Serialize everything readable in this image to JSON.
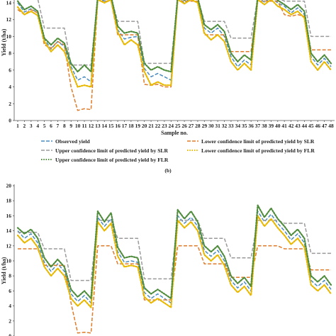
{
  "chart_data": [
    {
      "type": "line",
      "ylabel": "Yield (t/ha)",
      "xlabel": "Sample no.",
      "ylim": [
        0,
        14
      ],
      "yticks": [
        0,
        2,
        4,
        6,
        8,
        10,
        12,
        14
      ],
      "grid": false,
      "x": [
        1,
        2,
        3,
        4,
        5,
        6,
        7,
        8,
        9,
        10,
        11,
        12,
        13,
        14,
        15,
        16,
        17,
        18,
        19,
        20,
        21,
        22,
        23,
        24,
        25,
        26,
        27,
        28,
        29,
        30,
        31,
        32,
        33,
        34,
        35,
        36,
        37,
        38,
        39,
        40,
        41,
        42,
        43,
        44,
        45,
        46,
        47,
        48
      ],
      "series": [
        {
          "name": "Observed yield",
          "color": "#4a8bbf",
          "dash": "long",
          "values": [
            14.0,
            12.9,
            13.3,
            12.8,
            9.7,
            8.5,
            9.4,
            8.8,
            6.4,
            4.8,
            5.2,
            4.6,
            14.6,
            14.2,
            14.6,
            10.8,
            9.7,
            9.9,
            10.0,
            6.2,
            5.2,
            5.6,
            5.2,
            4.8,
            14.6,
            14.0,
            14.6,
            14.4,
            11.0,
            10.4,
            11.0,
            10.0,
            7.6,
            6.4,
            7.2,
            6.6,
            14.6,
            14.1,
            14.6,
            14.0,
            13.6,
            12.8,
            13.4,
            12.6,
            7.6,
            6.6,
            7.4,
            6.4
          ]
        },
        {
          "name": "Lower confidence limit of predicted yield by SLR",
          "color": "#e07b29",
          "dash": "long",
          "values": [
            13.2,
            12.6,
            13.2,
            12.8,
            9.0,
            8.6,
            9.4,
            9.0,
            4.0,
            1.2,
            1.4,
            1.3,
            14.2,
            14.2,
            14.2,
            10.2,
            10.2,
            10.2,
            10.2,
            4.3,
            4.2,
            4.3,
            4.0,
            4.0,
            14.2,
            14.2,
            14.2,
            14.2,
            10.2,
            10.2,
            10.2,
            10.2,
            8.2,
            8.2,
            8.2,
            8.2,
            14.2,
            14.2,
            14.2,
            14.2,
            12.6,
            12.4,
            12.6,
            12.4,
            8.4,
            8.4,
            8.4,
            8.4
          ]
        },
        {
          "name": "Upper confidence limit of predicted yield by SLR",
          "color": "#9a9a9a",
          "dash": "long",
          "values": [
            14.5,
            14.5,
            14.5,
            14.5,
            11.0,
            11.0,
            11.0,
            11.0,
            6.6,
            6.6,
            6.6,
            6.6,
            14.6,
            14.6,
            14.6,
            11.8,
            11.8,
            11.8,
            11.8,
            6.8,
            6.8,
            6.8,
            6.8,
            6.8,
            14.6,
            14.6,
            14.6,
            14.6,
            11.8,
            11.8,
            11.8,
            11.8,
            9.8,
            9.8,
            9.8,
            9.8,
            14.6,
            14.6,
            14.6,
            14.6,
            14.2,
            14.2,
            14.2,
            14.2,
            10.0,
            10.0,
            10.0,
            10.0
          ]
        },
        {
          "name": "Lower confidence limit of predicted yield by FLR",
          "color": "#e8b800",
          "dash": "dot",
          "values": [
            13.5,
            12.6,
            13.0,
            12.5,
            9.4,
            8.2,
            9.0,
            8.2,
            6.0,
            4.0,
            4.2,
            4.0,
            14.4,
            14.0,
            14.4,
            10.5,
            9.0,
            9.6,
            9.0,
            5.8,
            4.2,
            4.6,
            4.2,
            4.2,
            14.4,
            13.9,
            14.4,
            14.0,
            10.4,
            9.6,
            10.2,
            9.4,
            7.0,
            6.0,
            6.8,
            6.0,
            14.4,
            13.8,
            14.4,
            13.6,
            13.2,
            12.6,
            13.0,
            12.2,
            7.0,
            6.0,
            7.0,
            6.0
          ]
        },
        {
          "name": "Upper confidence limit of predicted yield by FLR",
          "color": "#4e8c3c",
          "dash": "dot",
          "values": [
            14.2,
            13.2,
            13.6,
            13.0,
            9.8,
            9.0,
            9.8,
            9.2,
            6.8,
            5.8,
            6.6,
            5.8,
            14.8,
            14.4,
            14.8,
            11.2,
            10.4,
            10.6,
            10.4,
            6.8,
            6.0,
            6.4,
            6.0,
            5.8,
            14.8,
            14.3,
            14.8,
            14.6,
            11.4,
            10.8,
            11.4,
            10.6,
            8.0,
            7.0,
            7.8,
            7.2,
            14.8,
            14.4,
            14.8,
            14.3,
            13.8,
            13.2,
            13.8,
            13.0,
            8.0,
            7.0,
            7.8,
            6.8
          ]
        }
      ]
    },
    {
      "type": "line",
      "panel_label": "(b)",
      "ylabel": "Yield (t/ha)",
      "ylim": [
        0,
        20
      ],
      "yticks": [
        0,
        2,
        4,
        6,
        8,
        10,
        12,
        14,
        16,
        18,
        20
      ],
      "grid": false,
      "x": [
        1,
        2,
        3,
        4,
        5,
        6,
        7,
        8,
        9,
        10,
        11,
        12,
        13,
        14,
        15,
        16,
        17,
        18,
        19,
        20,
        21,
        22,
        23,
        24,
        25,
        26,
        27,
        28,
        29,
        30,
        31,
        32,
        33,
        34,
        35,
        36,
        37,
        38,
        39,
        40,
        41,
        42,
        43,
        44,
        45,
        46,
        47,
        48
      ],
      "series": [
        {
          "name": "Observed yield",
          "color": "#4a8bbf",
          "dash": "long",
          "values": [
            14.0,
            13.0,
            13.6,
            12.4,
            9.8,
            8.6,
            9.6,
            8.6,
            5.6,
            4.6,
            5.4,
            4.4,
            15.8,
            14.6,
            15.6,
            11.2,
            9.8,
            10.0,
            9.8,
            5.8,
            5.0,
            5.6,
            5.0,
            4.4,
            16.0,
            15.0,
            15.8,
            14.6,
            11.4,
            10.6,
            11.4,
            10.0,
            7.4,
            6.4,
            7.2,
            6.0,
            16.6,
            15.2,
            16.2,
            15.0,
            14.0,
            12.8,
            13.6,
            12.4,
            7.4,
            6.6,
            7.4,
            6.2
          ]
        },
        {
          "name": "Lower confidence limit of predicted yield by SLR",
          "color": "#e07b29",
          "dash": "long",
          "values": [
            11.6,
            11.6,
            11.6,
            11.6,
            9.4,
            9.4,
            9.4,
            9.4,
            4.4,
            0.4,
            0.5,
            0.4,
            12.0,
            12.0,
            12.0,
            9.6,
            9.6,
            9.6,
            9.6,
            4.8,
            4.8,
            4.8,
            4.8,
            4.8,
            12.0,
            12.0,
            12.0,
            12.0,
            9.6,
            9.6,
            9.6,
            9.6,
            7.8,
            7.8,
            7.8,
            7.8,
            12.0,
            12.0,
            12.0,
            12.0,
            11.6,
            11.6,
            11.6,
            11.6,
            8.8,
            8.8,
            8.8,
            8.8
          ]
        },
        {
          "name": "Upper confidence limit of predicted yield by SLR",
          "color": "#9a9a9a",
          "dash": "long",
          "values": [
            13.8,
            13.8,
            13.8,
            13.8,
            11.6,
            11.6,
            11.6,
            11.6,
            7.4,
            7.4,
            7.4,
            7.4,
            15.4,
            15.4,
            15.4,
            13.0,
            13.0,
            13.0,
            13.0,
            7.6,
            7.6,
            7.6,
            7.6,
            7.6,
            15.4,
            15.4,
            15.4,
            15.4,
            13.0,
            13.0,
            13.0,
            13.0,
            10.4,
            10.4,
            10.4,
            10.4,
            15.4,
            15.4,
            15.4,
            15.4,
            15.0,
            15.0,
            15.0,
            15.0,
            11.0,
            11.0,
            11.0,
            11.0
          ]
        },
        {
          "name": "Lower confidence limit of predicted yield by FLR",
          "color": "#e8b800",
          "dash": "dot",
          "values": [
            13.4,
            12.4,
            13.0,
            11.8,
            9.2,
            8.0,
            9.0,
            8.0,
            5.0,
            4.0,
            4.8,
            3.8,
            15.2,
            14.0,
            15.0,
            10.6,
            9.2,
            9.4,
            9.2,
            5.2,
            4.4,
            5.0,
            4.4,
            3.8,
            15.4,
            14.4,
            15.2,
            14.0,
            10.8,
            10.0,
            10.8,
            9.4,
            6.8,
            5.8,
            6.6,
            5.4,
            16.0,
            14.6,
            15.6,
            14.4,
            13.4,
            12.2,
            13.0,
            11.8,
            6.8,
            6.0,
            6.8,
            5.6
          ]
        },
        {
          "name": "Upper confidence limit of predicted yield by FLR",
          "color": "#4e8c3c",
          "dash": "dot",
          "values": [
            14.4,
            13.6,
            14.2,
            13.0,
            10.4,
            9.2,
            10.2,
            9.2,
            6.2,
            5.2,
            6.0,
            5.0,
            16.6,
            15.2,
            16.4,
            11.8,
            10.4,
            10.6,
            10.4,
            6.4,
            5.6,
            6.2,
            5.6,
            5.0,
            16.8,
            15.6,
            16.6,
            15.2,
            12.0,
            11.2,
            12.0,
            10.6,
            8.0,
            7.0,
            7.8,
            6.6,
            17.4,
            15.8,
            17.0,
            15.6,
            14.6,
            13.4,
            14.2,
            13.0,
            8.0,
            7.2,
            8.0,
            6.8
          ]
        }
      ]
    }
  ],
  "legend": {
    "observed": "Observed yield",
    "lower_slr": "Lower confidence limit of predicted yield by SLR",
    "upper_slr": "Upper confidence limit of predicted yield by SLR",
    "lower_flr": "Lower confidence limit of predicted yield by FLR",
    "upper_flr": "Upper confidence limit of predicted yield by FLR"
  }
}
